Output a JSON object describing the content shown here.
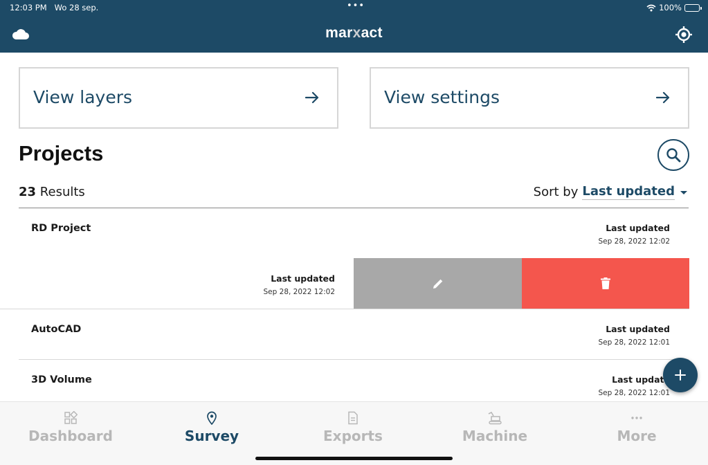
{
  "status_bar": {
    "time": "12:03 PM",
    "date": "Wo 28 sep.",
    "battery": "100%"
  },
  "header": {
    "logo_pre": "mar",
    "logo_x": "x",
    "logo_post": "act"
  },
  "cards": [
    {
      "label": "View layers"
    },
    {
      "label": "View settings"
    }
  ],
  "projects": {
    "title": "Projects",
    "results_count": "23",
    "results_label": "Results",
    "sort_label": "Sort by",
    "sort_value": "Last updated"
  },
  "rows": [
    {
      "name": "RD Project",
      "updated_label": "Last updated",
      "updated_date": "Sep 28, 2022 12:02"
    },
    {
      "name": "",
      "updated_label": "Last updated",
      "updated_date": "Sep 28, 2022 12:02"
    },
    {
      "name": "AutoCAD",
      "updated_label": "Last updated",
      "updated_date": "Sep 28, 2022 12:01"
    },
    {
      "name": "3D Volume",
      "updated_label": "Last update",
      "updated_date": "Sep 28, 2022 12:01"
    }
  ],
  "nav": [
    {
      "label": "Dashboard",
      "icon": "dashboard-icon"
    },
    {
      "label": "Survey",
      "icon": "location-pin-icon",
      "active": true
    },
    {
      "label": "Exports",
      "icon": "document-icon"
    },
    {
      "label": "Machine",
      "icon": "excavator-icon"
    },
    {
      "label": "More",
      "icon": "more-dots-icon"
    }
  ],
  "colors": {
    "brand": "#1d4a66",
    "delete": "#f4564d",
    "edit": "#a8a8a8",
    "inactive": "#b7b7b7"
  }
}
